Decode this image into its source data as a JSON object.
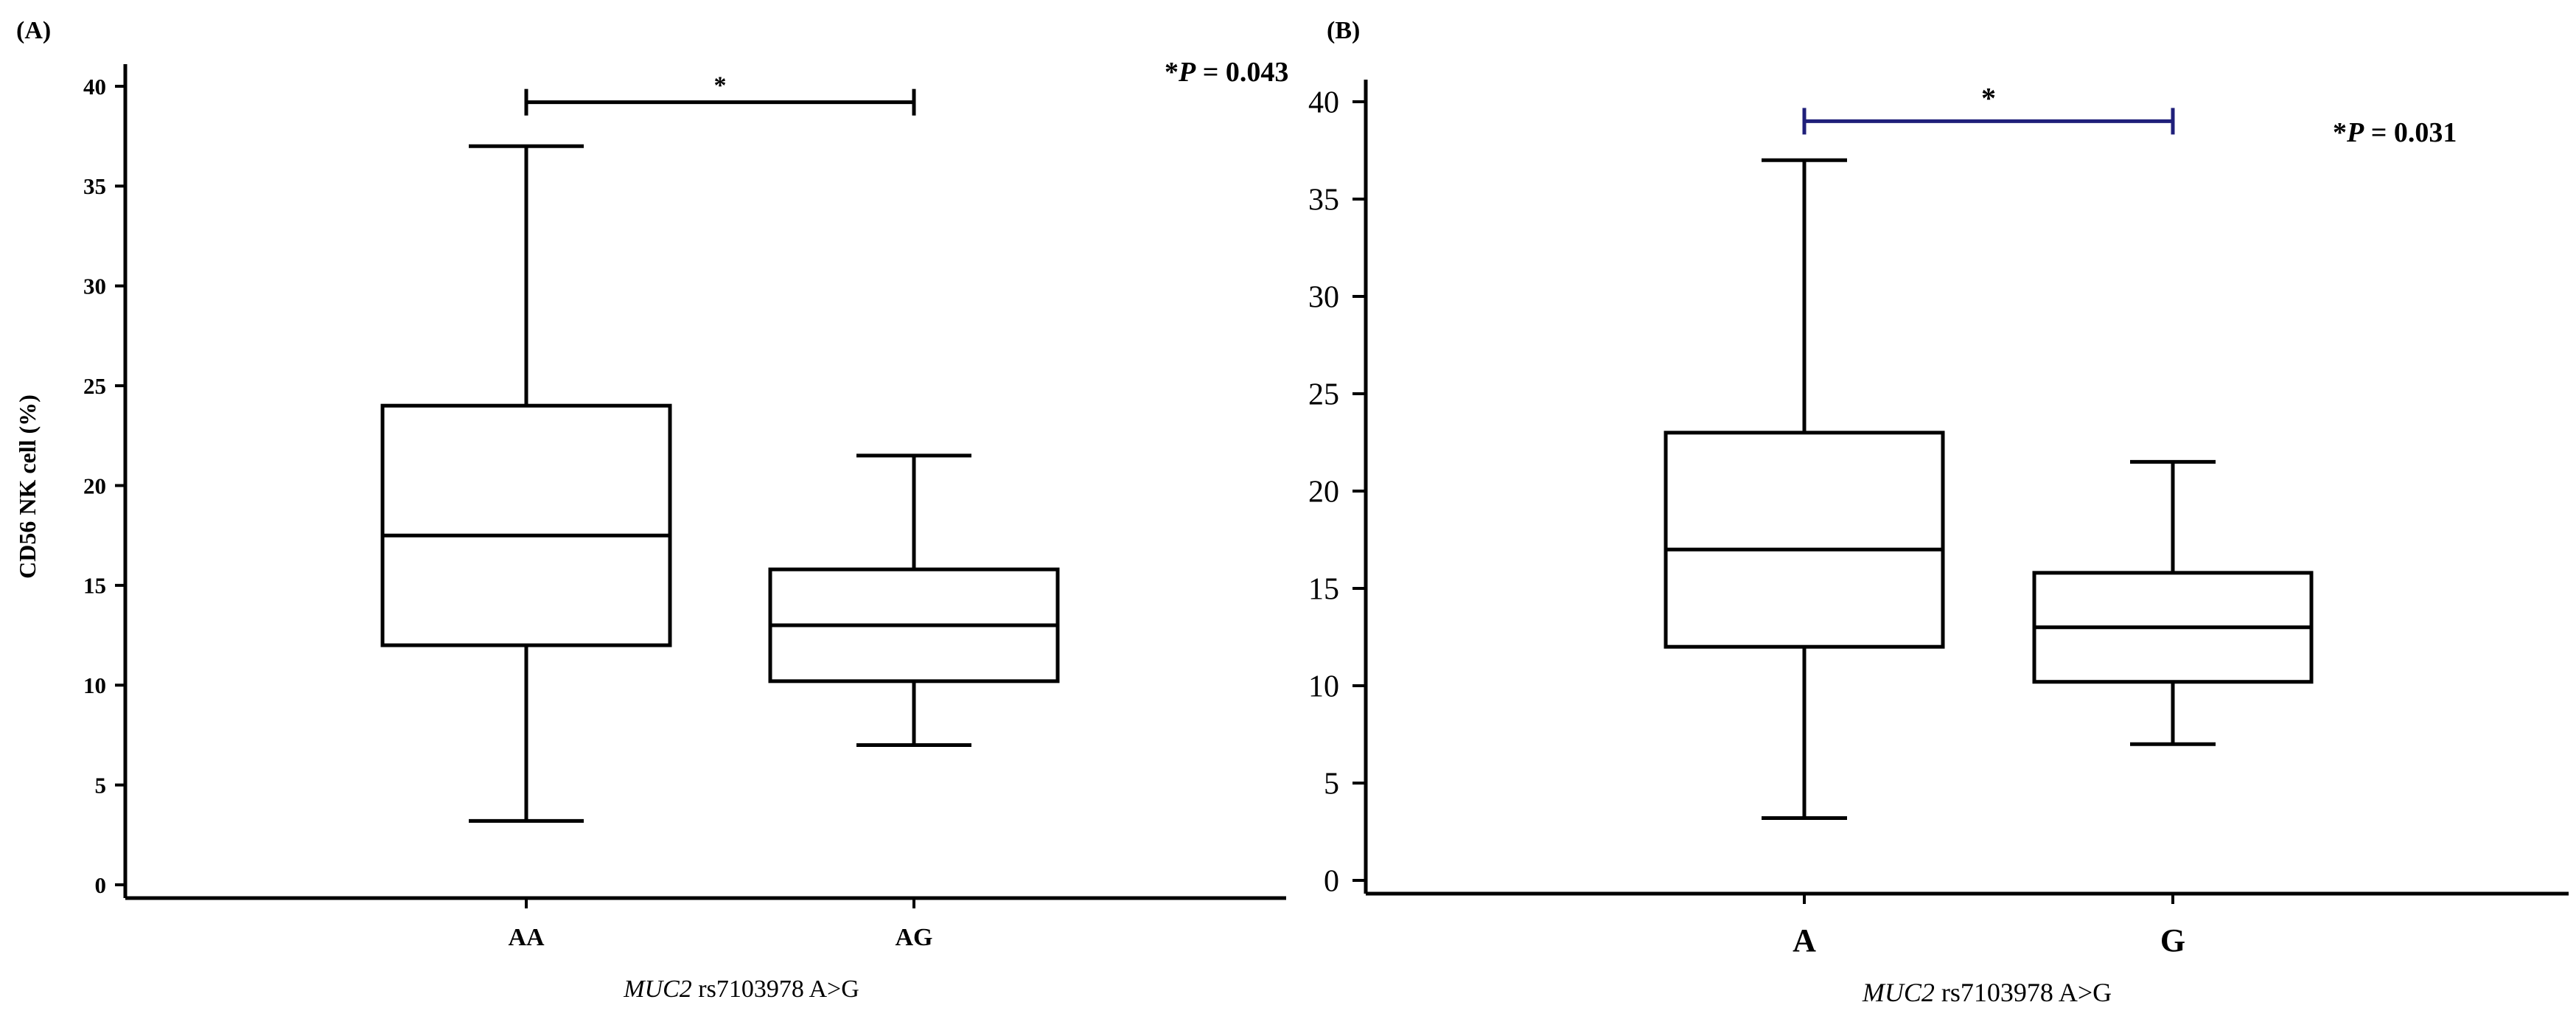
{
  "chart_data": [
    {
      "type": "box",
      "panel_label": "(A)",
      "xlabel_italic": "MUC2",
      "xlabel_rest": " rs7103978 A>G",
      "ylabel": "CD56 NK cell (%)",
      "ylim": [
        0,
        40
      ],
      "yticks": [
        "0",
        "5",
        "10",
        "15",
        "20",
        "25",
        "30",
        "35",
        "40"
      ],
      "categories": [
        "AA",
        "AG"
      ],
      "boxes": [
        {
          "category": "AA",
          "min": 3.2,
          "q1": 12.0,
          "median": 17.5,
          "q3": 24.0,
          "max": 37.0
        },
        {
          "category": "AG",
          "min": 7.0,
          "q1": 10.2,
          "median": 13.0,
          "q3": 15.8,
          "max": 21.5
        }
      ],
      "significance": {
        "star": "*",
        "bracket_y": 39.2,
        "color": "#000000"
      },
      "pvalue": {
        "prefix": "*",
        "p": "P",
        "rest": " = 0.043"
      }
    },
    {
      "type": "box",
      "panel_label": "(B)",
      "xlabel_italic": "MUC2",
      "xlabel_rest": " rs7103978 A>G",
      "ylabel": "",
      "ylim": [
        0,
        40
      ],
      "yticks": [
        "0",
        "5",
        "10",
        "15",
        "20",
        "25",
        "30",
        "35",
        "40"
      ],
      "categories": [
        "A",
        "G"
      ],
      "boxes": [
        {
          "category": "A",
          "min": 3.2,
          "q1": 12.0,
          "median": 17.0,
          "q3": 23.0,
          "max": 37.0
        },
        {
          "category": "G",
          "min": 7.0,
          "q1": 10.2,
          "median": 13.0,
          "q3": 15.8,
          "max": 21.5
        }
      ],
      "significance": {
        "star": "*",
        "bracket_y": 39.0,
        "color": "#1f1f7a"
      },
      "pvalue": {
        "prefix": "*",
        "p": "P",
        "rest": " = 0.031"
      }
    }
  ]
}
